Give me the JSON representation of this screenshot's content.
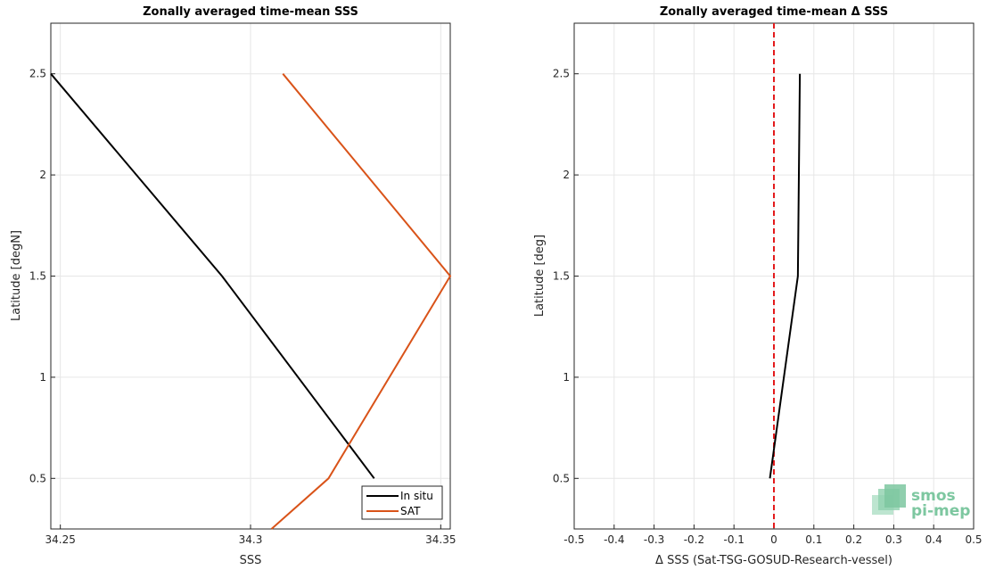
{
  "chart_data": [
    {
      "type": "line",
      "title": "Zonally averaged time-mean SSS",
      "xlabel": "SSS",
      "ylabel": "Latitude [degN]",
      "xlim": [
        34.2475,
        34.3525
      ],
      "ylim": [
        0.25,
        2.75
      ],
      "xticks": [
        34.25,
        34.3,
        34.35
      ],
      "yticks": [
        0.5,
        1,
        1.5,
        2,
        2.5
      ],
      "xtick_labels": [
        "34.25",
        "34.3",
        "34.35"
      ],
      "ytick_labels": [
        "0.5",
        "1",
        "1.5",
        "2",
        "2.5"
      ],
      "grid": true,
      "legend_position": "bottom-right",
      "series": [
        {
          "name": "In situ",
          "color": "#000000",
          "points": [
            {
              "x": 34.3325,
              "y": 0.5
            },
            {
              "x": 34.2925,
              "y": 1.5
            },
            {
              "x": 34.2475,
              "y": 2.5
            }
          ]
        },
        {
          "name": "SAT",
          "color": "#d95319",
          "points": [
            {
              "x": 34.3055,
              "y": 0.25
            },
            {
              "x": 34.3205,
              "y": 0.5
            },
            {
              "x": 34.3525,
              "y": 1.5
            },
            {
              "x": 34.3085,
              "y": 2.5
            }
          ]
        }
      ]
    },
    {
      "type": "line",
      "title": "Zonally averaged time-mean Δ SSS",
      "xlabel": "Δ SSS (Sat-TSG-GOSUD-Research-vessel)",
      "ylabel": "Latitude [deg]",
      "xlim": [
        -0.5,
        0.5
      ],
      "ylim": [
        0.25,
        2.75
      ],
      "xticks": [
        -0.5,
        -0.4,
        -0.3,
        -0.2,
        -0.1,
        0,
        0.1,
        0.2,
        0.3,
        0.4,
        0.5
      ],
      "yticks": [
        0.5,
        1,
        1.5,
        2,
        2.5
      ],
      "xtick_labels": [
        "-0.5",
        "-0.4",
        "-0.3",
        "-0.2",
        "-0.1",
        "0",
        "0.1",
        "0.2",
        "0.3",
        "0.4",
        "0.5"
      ],
      "ytick_labels": [
        "0.5",
        "1",
        "1.5",
        "2",
        "2.5"
      ],
      "grid": true,
      "reference_line": {
        "x": 0,
        "color": "#e31a1c",
        "style": "dashed"
      },
      "series": [
        {
          "color": "#000000",
          "points": [
            {
              "x": -0.01,
              "y": 0.5
            },
            {
              "x": 0.06,
              "y": 1.5
            },
            {
              "x": 0.065,
              "y": 2.5
            }
          ]
        }
      ]
    }
  ],
  "logo": {
    "line1": "smos",
    "line2": "pi-mep"
  }
}
